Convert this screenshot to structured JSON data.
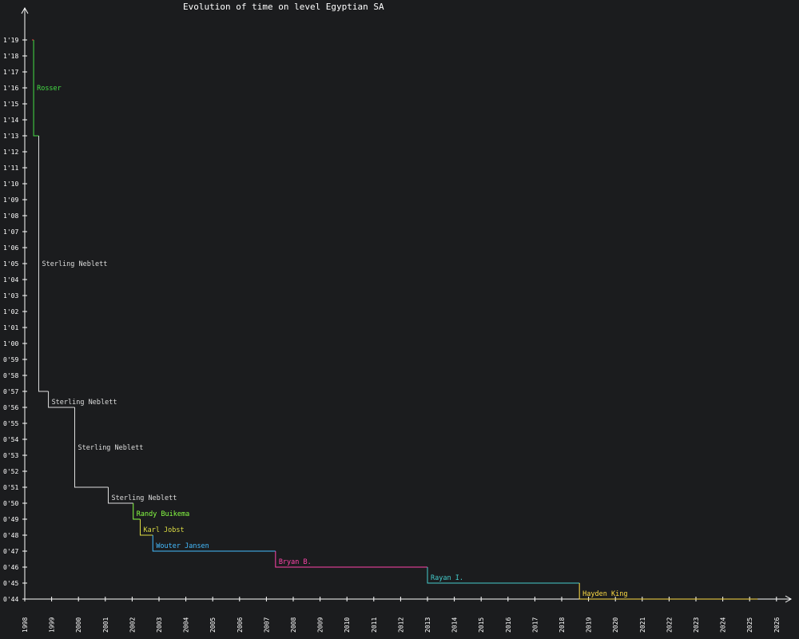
{
  "chart_data": {
    "type": "line",
    "title": "Evolution of time on level Egyptian SA",
    "xlabel": "",
    "ylabel": "",
    "xlim": [
      1998,
      2026.5
    ],
    "ylim": [
      44,
      80
    ],
    "x_ticks": [
      "1998",
      "1999",
      "2000",
      "2001",
      "2002",
      "2003",
      "2004",
      "2005",
      "2006",
      "2007",
      "2008",
      "2009",
      "2010",
      "2011",
      "2012",
      "2013",
      "2014",
      "2015",
      "2016",
      "2017",
      "2018",
      "2019",
      "2020",
      "2021",
      "2022",
      "2023",
      "2024",
      "2025",
      "2026"
    ],
    "y_ticks": [
      {
        "value": 44,
        "label": "0'44"
      },
      {
        "value": 45,
        "label": "0'45"
      },
      {
        "value": 46,
        "label": "0'46"
      },
      {
        "value": 47,
        "label": "0'47"
      },
      {
        "value": 48,
        "label": "0'48"
      },
      {
        "value": 49,
        "label": "0'49"
      },
      {
        "value": 50,
        "label": "0'50"
      },
      {
        "value": 51,
        "label": "0'51"
      },
      {
        "value": 52,
        "label": "0'52"
      },
      {
        "value": 53,
        "label": "0'53"
      },
      {
        "value": 54,
        "label": "0'54"
      },
      {
        "value": 55,
        "label": "0'55"
      },
      {
        "value": 56,
        "label": "0'56"
      },
      {
        "value": 57,
        "label": "0'57"
      },
      {
        "value": 58,
        "label": "0'58"
      },
      {
        "value": 59,
        "label": "0'59"
      },
      {
        "value": 60,
        "label": "1'00"
      },
      {
        "value": 61,
        "label": "1'01"
      },
      {
        "value": 62,
        "label": "1'02"
      },
      {
        "value": 63,
        "label": "1'03"
      },
      {
        "value": 64,
        "label": "1'04"
      },
      {
        "value": 65,
        "label": "1'05"
      },
      {
        "value": 66,
        "label": "1'06"
      },
      {
        "value": 67,
        "label": "1'07"
      },
      {
        "value": 68,
        "label": "1'08"
      },
      {
        "value": 69,
        "label": "1'09"
      },
      {
        "value": 70,
        "label": "1'10"
      },
      {
        "value": 71,
        "label": "1'11"
      },
      {
        "value": 72,
        "label": "1'12"
      },
      {
        "value": 73,
        "label": "1'13"
      },
      {
        "value": 74,
        "label": "1'14"
      },
      {
        "value": 75,
        "label": "1'15"
      },
      {
        "value": 76,
        "label": "1'16"
      },
      {
        "value": 77,
        "label": "1'17"
      },
      {
        "value": 78,
        "label": "1'18"
      },
      {
        "value": 79,
        "label": "1'19"
      }
    ],
    "grid": false,
    "colors": {
      "background": "#1b1c1e",
      "axis": "#ffffff"
    },
    "records": [
      {
        "holder": "",
        "start": 1998.27,
        "end": 1998.33,
        "time": 79,
        "color": "#ff4444"
      },
      {
        "holder": "Rosser",
        "start": 1998.33,
        "end": 1998.52,
        "time": 73,
        "color": "#44dd44"
      },
      {
        "holder": "Sterling Neblett",
        "start": 1998.52,
        "end": 1998.88,
        "time": 57,
        "color": "#dddddd"
      },
      {
        "holder": "Sterling Neblett",
        "start": 1998.88,
        "end": 1999.86,
        "time": 56,
        "color": "#dddddd"
      },
      {
        "holder": "Sterling Neblett",
        "start": 1999.86,
        "end": 2001.11,
        "time": 51,
        "color": "#dddddd"
      },
      {
        "holder": "Sterling Neblett",
        "start": 2001.11,
        "end": 2002.04,
        "time": 50,
        "color": "#dddddd"
      },
      {
        "holder": "Randy Buikema",
        "start": 2002.04,
        "end": 2002.3,
        "time": 49,
        "color": "#88ff44"
      },
      {
        "holder": "Karl Jobst",
        "start": 2002.3,
        "end": 2002.77,
        "time": 48,
        "color": "#dddd44"
      },
      {
        "holder": "Wouter Jansen",
        "start": 2002.77,
        "end": 2007.34,
        "time": 47,
        "color": "#44bbff"
      },
      {
        "holder": "Bryan B.",
        "start": 2007.34,
        "end": 2013.0,
        "time": 46,
        "color": "#ff44aa"
      },
      {
        "holder": "Rayan I.",
        "start": 2013.0,
        "end": 2018.66,
        "time": 45,
        "color": "#44cccc"
      },
      {
        "holder": "Hayden King",
        "start": 2018.66,
        "end": 2025.3,
        "time": 44,
        "color": "#ffdd44"
      }
    ]
  }
}
